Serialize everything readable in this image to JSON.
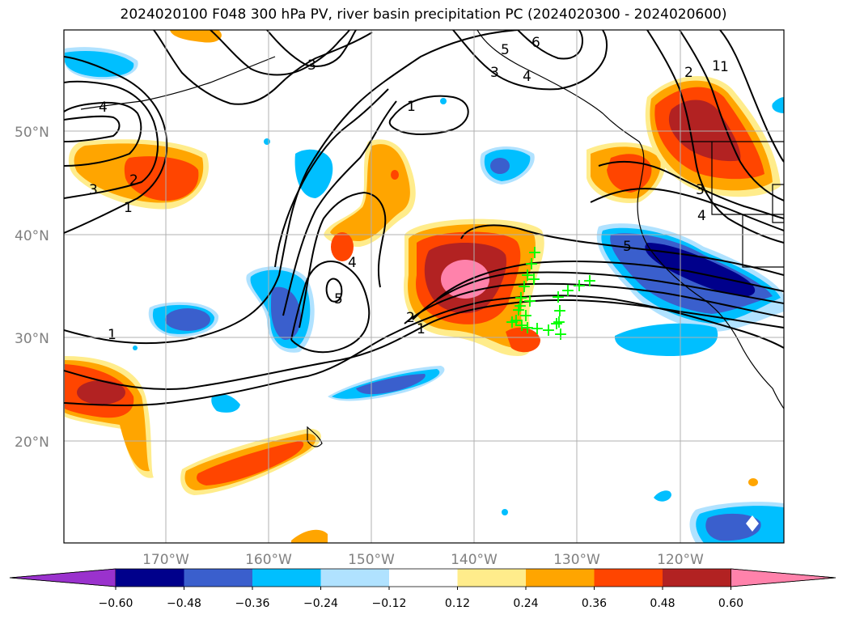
{
  "title": "2024020100 F048 300 hPa PV, river basin precipitation PC (2024020300 - 2024020600)",
  "map": {
    "lat_labels": [
      "50°N",
      "40°N",
      "30°N",
      "20°N"
    ],
    "lon_labels": [
      "170°W",
      "160°W",
      "150°W",
      "140°W",
      "130°W",
      "120°W"
    ],
    "contour_labels": [
      "4",
      "3",
      "1",
      "2",
      "3",
      "1",
      "3",
      "4",
      "6",
      "5",
      "1",
      "2",
      "1",
      "3",
      "4",
      "4",
      "5",
      "5",
      "2",
      "1",
      "1"
    ],
    "markers": {
      "symbol": "+",
      "color": "#00ff00",
      "count": 24
    }
  },
  "colorbar": {
    "colors": [
      "#9a32cd",
      "#00008b",
      "#3a5fcd",
      "#00bfff",
      "#b0e2ff",
      "#ffffff",
      "#ffec8b",
      "#ffa500",
      "#ff4500",
      "#b22222",
      "#ff82ab"
    ],
    "tick_labels": [
      "−0.60",
      "−0.48",
      "−0.36",
      "−0.24",
      "−0.12",
      "0.12",
      "0.24",
      "0.36",
      "0.48",
      "0.60"
    ]
  }
}
